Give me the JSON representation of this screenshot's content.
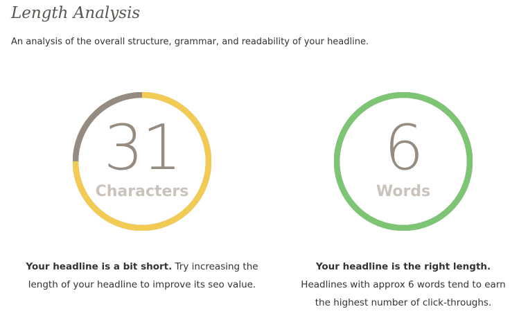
{
  "header": {
    "title": "Length Analysis",
    "subtitle": "An analysis of the overall structure, grammar, and readability of your headline."
  },
  "characters": {
    "value": "31",
    "label": "Characters",
    "fill_percent": 75,
    "fill_color": "#f2cb55",
    "track_color": "#958b80",
    "desc_bold": "Your headline is a bit short.",
    "desc_text": " Try increasing the length of your headline to improve its seo value."
  },
  "words": {
    "value": "6",
    "label": "Words",
    "fill_percent": 100,
    "fill_color": "#7dc575",
    "track_color": "#958b80",
    "desc_bold": "Your headline is the right length.",
    "desc_text": " Headlines with approx 6 words tend to earn the highest number of click-throughs."
  }
}
